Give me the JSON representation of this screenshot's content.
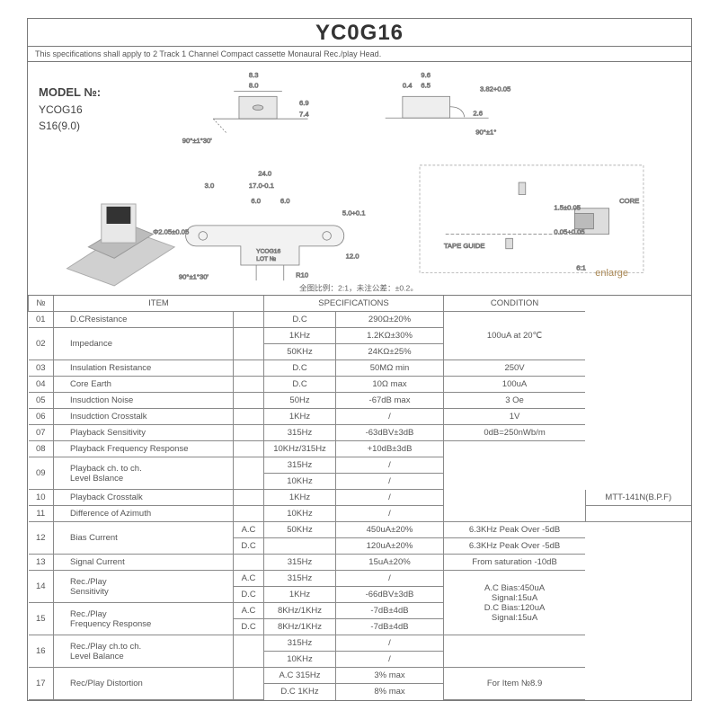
{
  "header": {
    "title": "YC0G16",
    "subtitle": "This specifications shall apply to 2 Track 1 Channel Compact cassette Monaural Rec./play Head."
  },
  "model": {
    "heading": "MODEL №:",
    "line1": "YCOG16",
    "line2": "S16(9.0)"
  },
  "drawing": {
    "dims": {
      "d1": "8.3",
      "d2": "8.0",
      "d3": "6.9",
      "d4": "7.4",
      "d5": "9.6",
      "d6": "6.5",
      "d7": "0.4",
      "d8": "3.82+0.05",
      "d9": "2.6",
      "d10": "90°±1°",
      "d11": "90°±1°30'",
      "d12": "24.0",
      "d13": "17.0-0.1",
      "d14": "3.0",
      "d15": "6.0",
      "d16": "6.0",
      "d17": "5.0+0.1",
      "d18": "Φ2.05±0.05",
      "d19": "12.0",
      "d20": "R10",
      "part_label_1": "YCOG16",
      "part_label_2": "LOT №",
      "tape_guide": "TAPE GUIDE",
      "core": "CORE",
      "d21": "1.5±0.05",
      "d22": "0.05+0.05",
      "scale": "6:1",
      "note": "全图比例：2:1，未注公差：±0.2。"
    },
    "enlarge": "enlarge"
  },
  "table": {
    "headers": {
      "no": "№",
      "item": "ITEM",
      "spec": "SPECIFICATIONS",
      "cond": "CONDITION"
    },
    "rows": [
      {
        "no": "01",
        "item": "D.CResistance",
        "sub": "",
        "freq": "D.C",
        "spec": "290Ω±20%",
        "cond": "",
        "rs_item": 1,
        "rs_sub": 1,
        "rs_cond": 3,
        "cond_text": "100uA at 20℃"
      },
      {
        "no": "02",
        "item": "Impedance",
        "sub": "",
        "freq": "1KHz",
        "spec": "1.2KΩ±30%",
        "rs_no": 2,
        "rs_item": 2,
        "rs_sub": 2
      },
      {
        "freq": "50KHz",
        "spec": "24KΩ±25%"
      },
      {
        "no": "03",
        "item": "Insulation Resistance",
        "sub": "",
        "freq": "D.C",
        "spec": "50MΩ min",
        "cond": "250V"
      },
      {
        "no": "04",
        "item": "Core Earth",
        "sub": "",
        "freq": "D.C",
        "spec": "10Ω max",
        "cond": "100uA"
      },
      {
        "no": "05",
        "item": "Insudction Noise",
        "sub": "",
        "freq": "50Hz",
        "spec": "-67dB max",
        "cond": "3 Oe"
      },
      {
        "no": "06",
        "item": "Insudction Crosstalk",
        "sub": "",
        "freq": "1KHz",
        "spec": "/",
        "cond": "1V"
      },
      {
        "no": "07",
        "item": "Playback Sensitivity",
        "sub": "",
        "freq": "315Hz",
        "spec": "-63dBV±3dB",
        "cond": "0dB=250nWb/m"
      },
      {
        "no": "08",
        "item": "Playback Frequency Response",
        "sub": "",
        "freq": "10KHz/315Hz",
        "spec": "+10dB±3dB",
        "cond": "",
        "rs_cond": 5
      },
      {
        "no": "09",
        "item": "Playback ch. to ch.\nLevel Bslance",
        "sub": "",
        "freq": "315Hz",
        "spec": "/",
        "rs_no": 2,
        "rs_item": 2,
        "rs_sub": 2
      },
      {
        "freq": "10KHz",
        "spec": "/"
      },
      {
        "no": "10",
        "item": "Playback Crosstalk",
        "sub": "",
        "freq": "1KHz",
        "spec": "/",
        "cond": "MTT-141N(B.P.F)"
      },
      {
        "no": "11",
        "item": "Difference of Azimuth",
        "sub": "",
        "freq": "10KHz",
        "spec": "/",
        "cond": ""
      },
      {
        "no": "12",
        "item": "Bias Current",
        "sub": "A.C",
        "freq": "50KHz",
        "spec": "450uA±20%",
        "cond": "6.3KHz Peak Over -5dB",
        "rs_no": 2,
        "rs_item": 2
      },
      {
        "sub": "D.C",
        "freq": "",
        "spec": "120uA±20%",
        "cond": "6.3KHz Peak Over -5dB"
      },
      {
        "no": "13",
        "item": "Signal Current",
        "sub": "",
        "freq": "315Hz",
        "spec": "15uA±20%",
        "cond": "From saturation -10dB"
      },
      {
        "no": "14",
        "item": "Rec./Play\nSensitivity",
        "sub": "A.C",
        "freq": "315Hz",
        "spec": "/",
        "rs_no": 2,
        "rs_item": 2,
        "rs_cond": 4,
        "cond_text": "A.C Bias:450uA\nSignal:15uA\nD.C Bias:120uA\nSignal:15uA"
      },
      {
        "sub": "D.C",
        "freq": "1KHz",
        "spec": "-66dBV±3dB"
      },
      {
        "no": "15",
        "item": "Rec./Play\nFrequency Response",
        "sub": "A.C",
        "freq": "8KHz/1KHz",
        "spec": "-7dB±4dB",
        "rs_no": 2,
        "rs_item": 2
      },
      {
        "sub": "D.C",
        "freq": "8KHz/1KHz",
        "spec": "-7dB±4dB"
      },
      {
        "no": "16",
        "item": "Rec./Play ch.to ch.\nLevel Balance",
        "sub": "",
        "freq": "315Hz",
        "spec": "/",
        "cond": "",
        "rs_no": 2,
        "rs_item": 2,
        "rs_sub": 2,
        "rs_cond": 2
      },
      {
        "freq": "10KHz",
        "spec": "/"
      },
      {
        "no": "17",
        "item": "Rec/Play Distortion",
        "sub": "",
        "freq": "A.C 315Hz",
        "spec": "3% max",
        "cond": "",
        "rs_no": 2,
        "rs_item": 2,
        "rs_sub": 2,
        "rs_cond": 2,
        "cond_text": "For Item №8.9"
      },
      {
        "freq": "D.C 1KHz",
        "spec": "8% max"
      }
    ]
  }
}
